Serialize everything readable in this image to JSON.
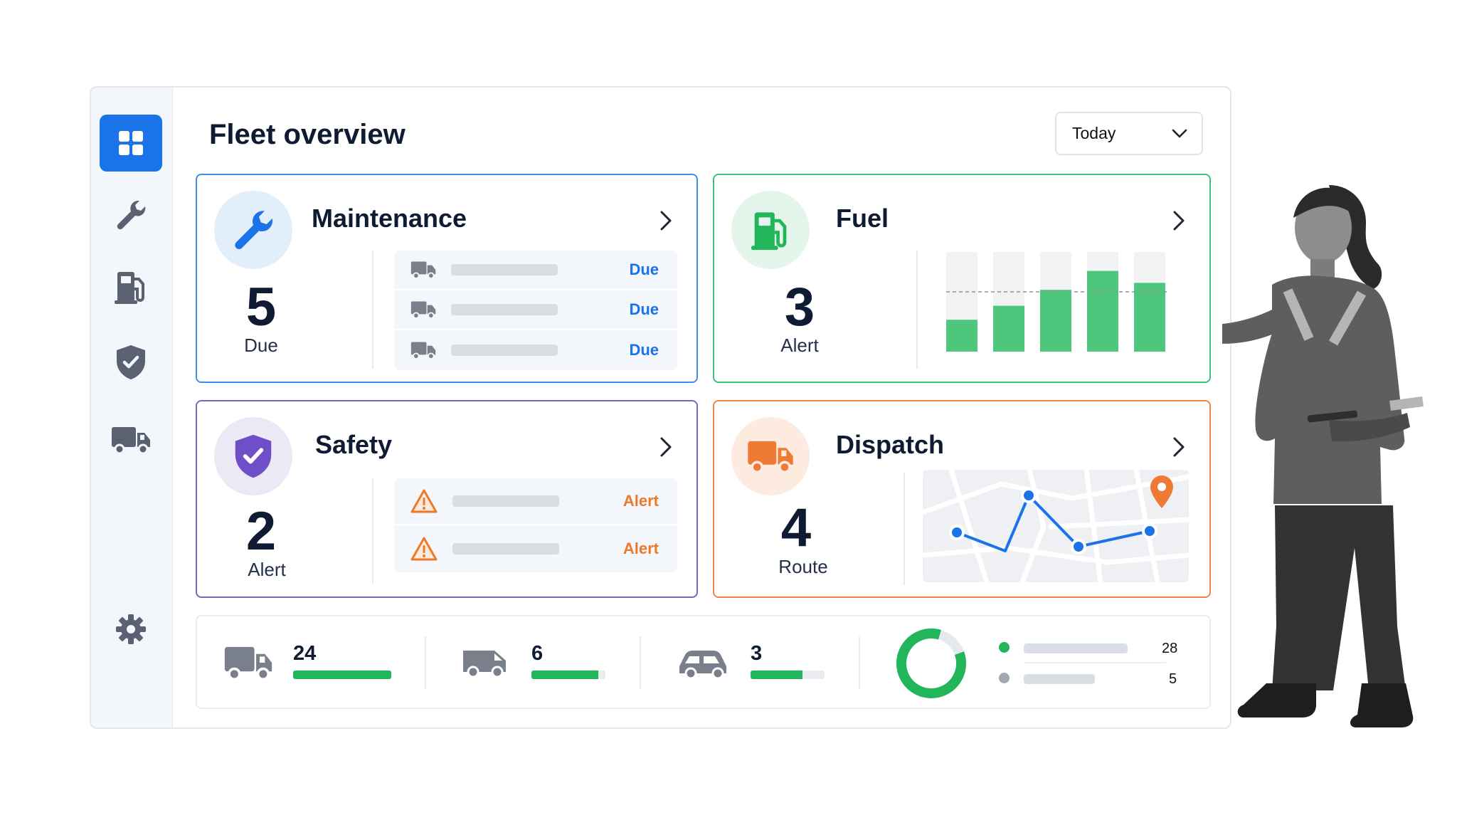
{
  "header": {
    "title": "Fleet overview",
    "range": "Today"
  },
  "sidebar": {
    "items": [
      {
        "icon": "grid-icon",
        "active": true
      },
      {
        "icon": "wrench-icon"
      },
      {
        "icon": "fuel-pump-icon"
      },
      {
        "icon": "shield-icon"
      },
      {
        "icon": "truck-icon"
      },
      {
        "icon": "gear-icon"
      }
    ]
  },
  "cards": {
    "maintenance": {
      "title": "Maintenance",
      "value": "5",
      "label": "Due",
      "rows": [
        {
          "tag": "Due"
        },
        {
          "tag": "Due"
        },
        {
          "tag": "Due"
        }
      ]
    },
    "fuel": {
      "title": "Fuel",
      "value": "3",
      "label": "Alert",
      "bars": [
        0.32,
        0.46,
        0.62,
        0.81,
        0.69
      ]
    },
    "safety": {
      "title": "Safety",
      "value": "2",
      "label": "Alert",
      "rows": [
        {
          "tag": "Alert"
        },
        {
          "tag": "Alert"
        }
      ]
    },
    "dispatch": {
      "title": "Dispatch",
      "value": "4",
      "label": "Route"
    }
  },
  "fleet": {
    "stats": [
      {
        "icon": "truck-icon",
        "value": "24",
        "fill": 1.0
      },
      {
        "icon": "van-icon",
        "value": "6",
        "fill": 0.9
      },
      {
        "icon": "car-icon",
        "value": "3",
        "fill": 0.7
      }
    ],
    "donut_fraction": 0.85,
    "legend": [
      {
        "color": "#22b55a",
        "value": "28"
      },
      {
        "color": "#a3a8b0",
        "value": "5"
      }
    ]
  },
  "colors": {
    "accent": "#1a73e8",
    "green": "#22b55a",
    "orange": "#ea7b2b",
    "purple": "#6e4fc7"
  }
}
